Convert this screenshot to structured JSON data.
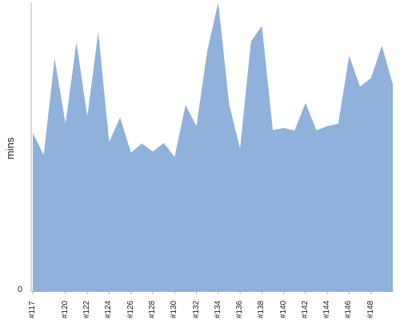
{
  "chart_data": {
    "type": "area",
    "ylabel": "mins",
    "ylim": [
      0,
      60
    ],
    "ytick_labels": [
      {
        "value": 0,
        "label": "0"
      }
    ],
    "x": [
      "#117",
      "#118",
      "#119",
      "#120",
      "#121",
      "#122",
      "#123",
      "#124",
      "#125",
      "#126",
      "#127",
      "#128",
      "#129",
      "#130",
      "#131",
      "#132",
      "#133",
      "#134",
      "#135",
      "#136",
      "#137",
      "#138",
      "#139",
      "#140",
      "#141",
      "#142",
      "#143",
      "#144",
      "#145",
      "#146",
      "#147",
      "#148",
      "#149",
      "#150"
    ],
    "x_tick_labels": [
      "#117",
      "#120",
      "#122",
      "#124",
      "#126",
      "#128",
      "#130",
      "#132",
      "#134",
      "#136",
      "#138",
      "#140",
      "#142",
      "#144",
      "#146",
      "#148"
    ],
    "values": [
      32.9,
      28.3,
      48.3,
      34.8,
      51.7,
      36.3,
      53.9,
      31.0,
      36.1,
      28.8,
      30.7,
      29.0,
      30.8,
      27.9,
      38.7,
      34.3,
      50.0,
      60.0,
      38.8,
      29.6,
      51.9,
      55.1,
      33.5,
      33.9,
      33.4,
      39.1,
      33.4,
      34.3,
      34.8,
      48.9,
      42.5,
      44.3,
      51.0,
      43.0
    ],
    "colors": {
      "fill": "#8fb1db",
      "axis": "#b0b0b0"
    },
    "grid": false,
    "legend": "none"
  }
}
